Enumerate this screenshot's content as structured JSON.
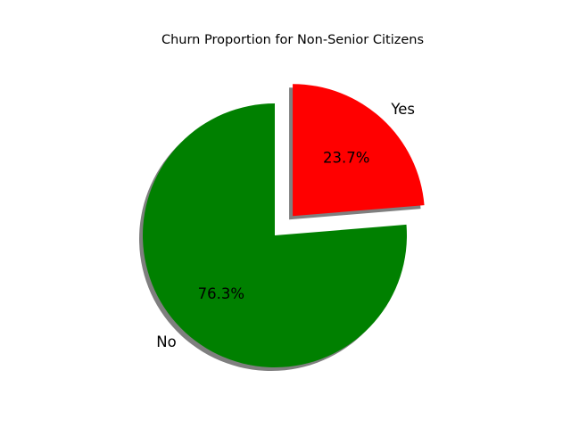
{
  "chart_data": {
    "type": "pie",
    "title": "Churn Proportion for Non-Senior Citizens",
    "categories": [
      "No",
      "Yes"
    ],
    "values": [
      76.3,
      23.7
    ],
    "value_labels": [
      "76.3%",
      "23.7%"
    ],
    "colors": [
      "#008000",
      "#ff0000"
    ],
    "explode": [
      0,
      0.2
    ],
    "start_angle_deg": 90,
    "direction": "counterclockwise",
    "shadow": true,
    "legend": "none",
    "grid": false
  }
}
